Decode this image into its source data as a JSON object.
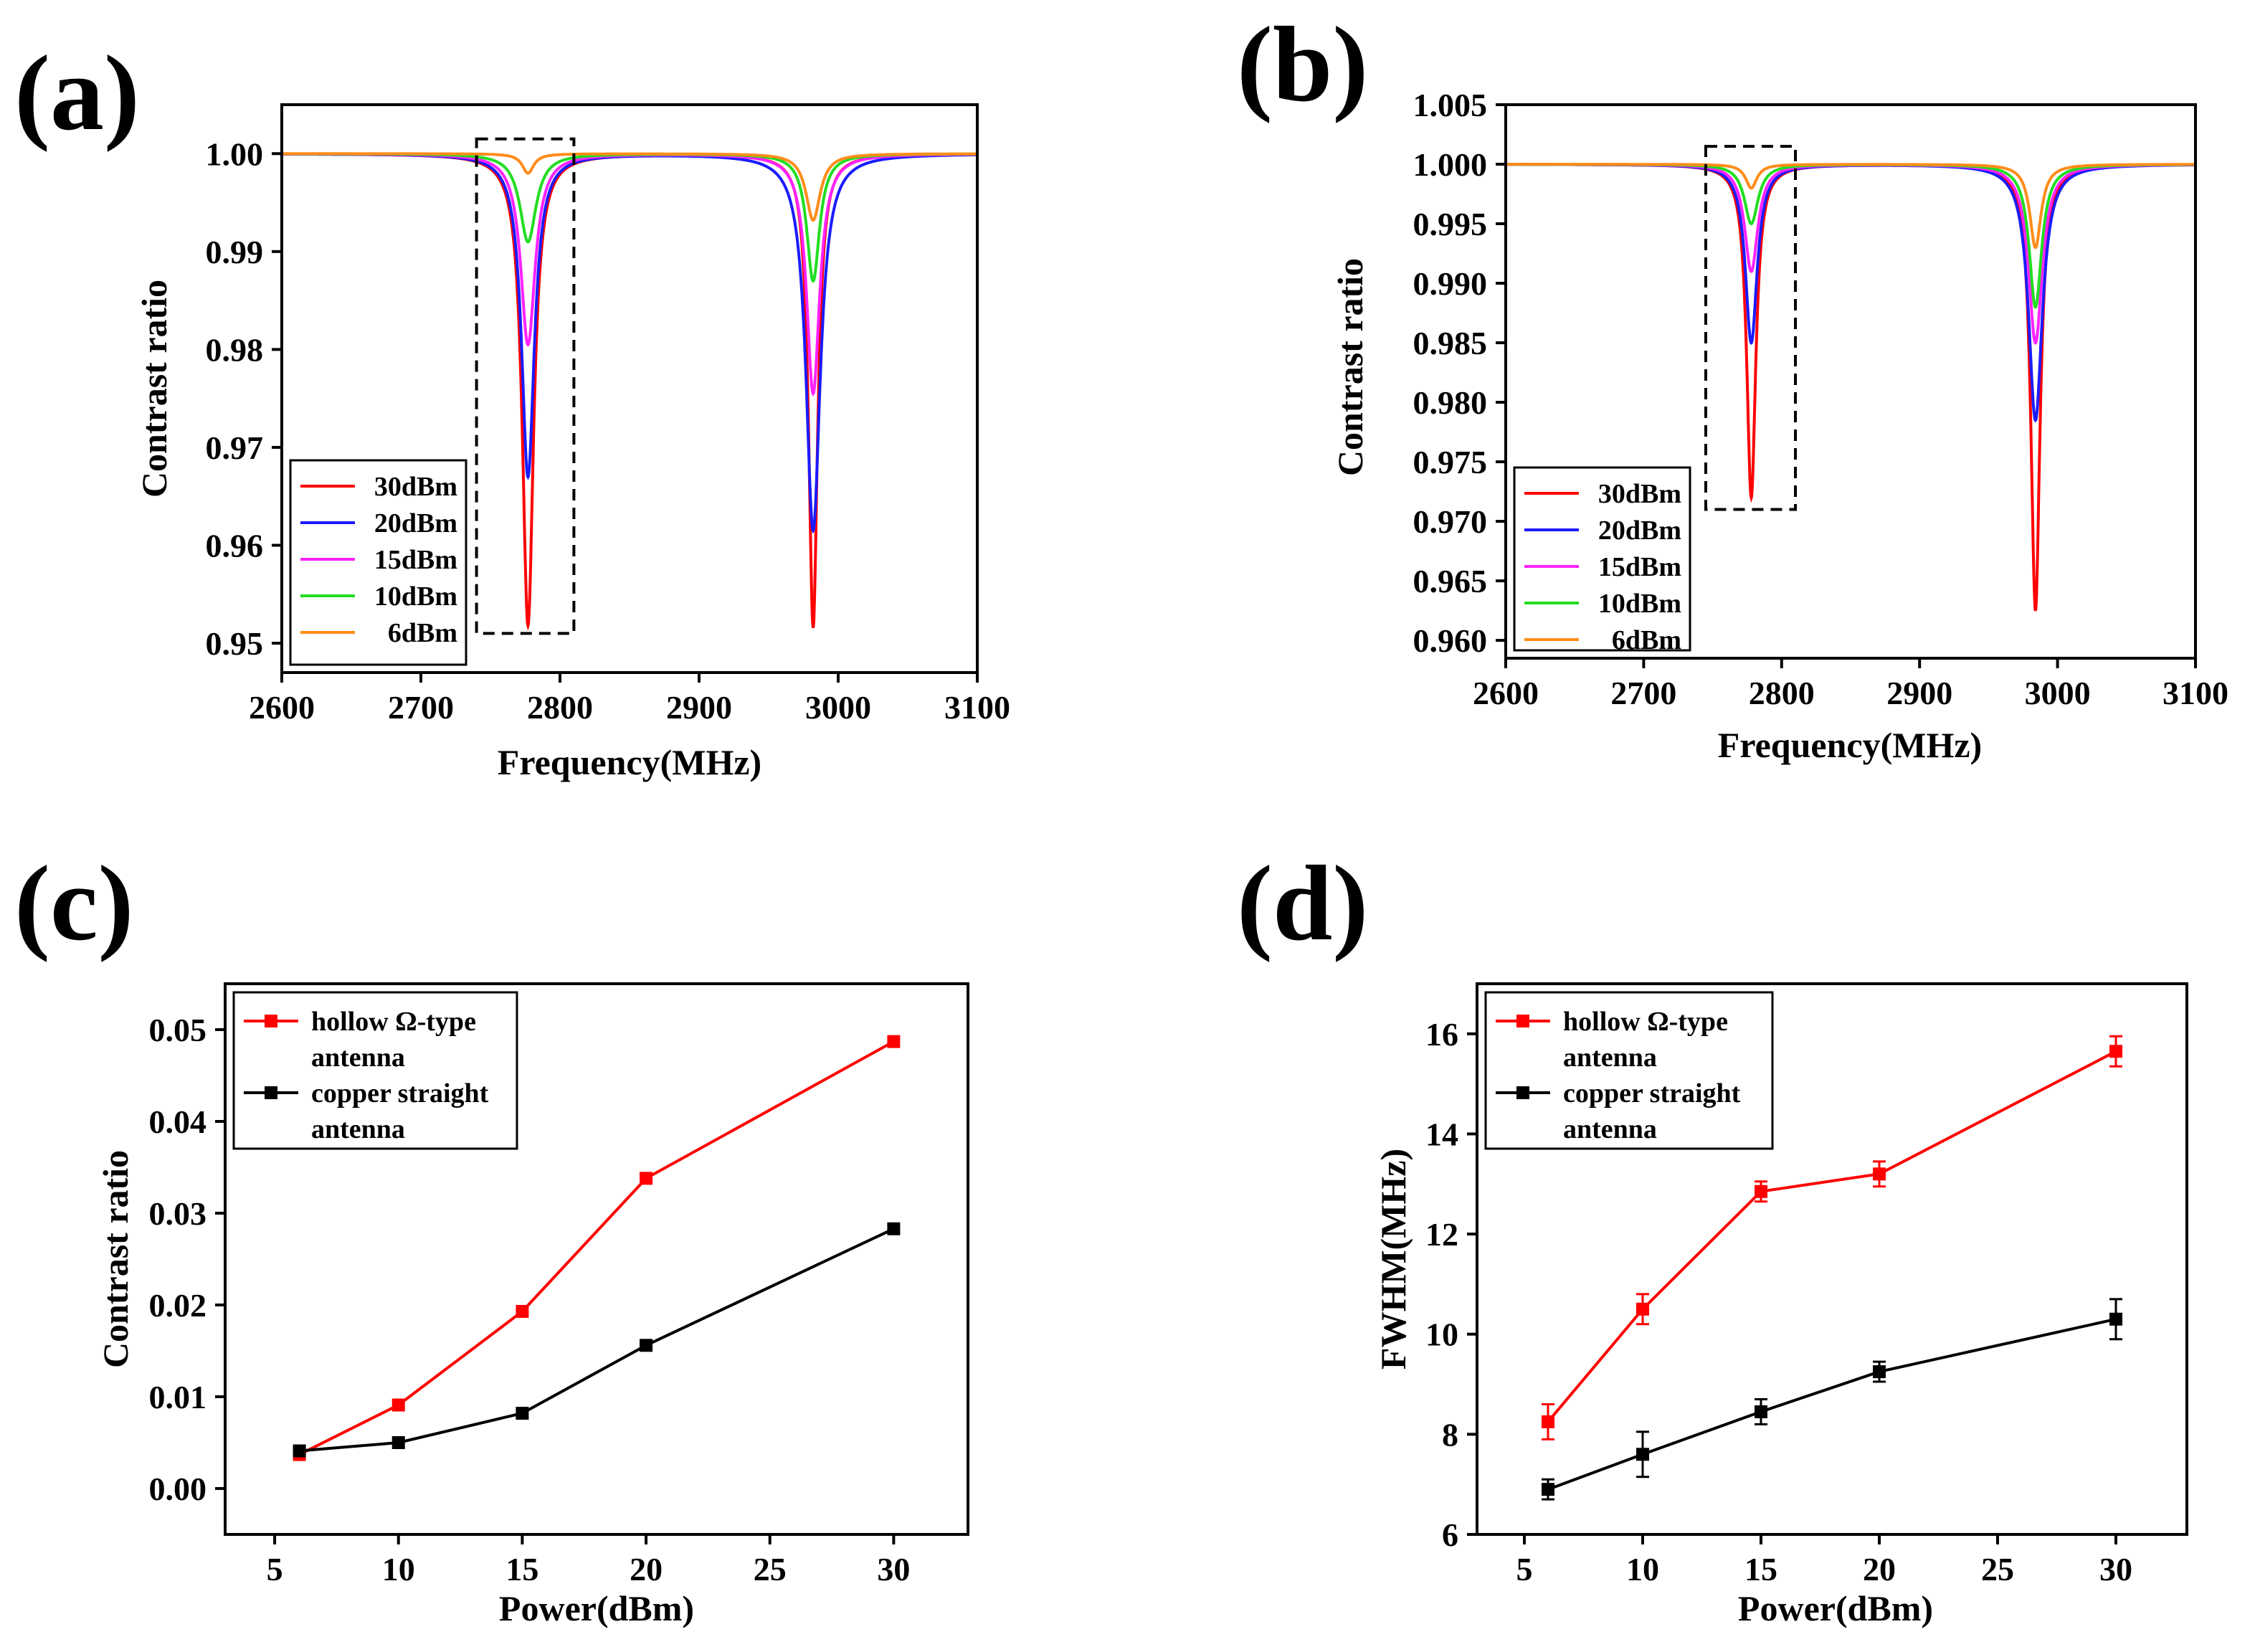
{
  "chart_data": [
    {
      "id": "a",
      "panel_label": "(a)",
      "type": "line",
      "xlabel": "Frequency(MHz)",
      "ylabel": "Contrast ratio",
      "xlim": [
        2600,
        3100
      ],
      "ylim": [
        0.947,
        1.005
      ],
      "xticks": [
        2600,
        2700,
        2800,
        2900,
        3000,
        3100
      ],
      "yticks": [
        0.95,
        0.96,
        0.97,
        0.98,
        0.99,
        1.0
      ],
      "ytick_labels": [
        "0.95",
        "0.96",
        "0.97",
        "0.98",
        "0.99",
        "1.00"
      ],
      "dip_centers": [
        2777,
        2982
      ],
      "highlight_box": {
        "x": [
          2740,
          2810
        ],
        "y": [
          0.951,
          1.0015
        ],
        "style": "dashed"
      },
      "series": [
        {
          "name": "30dBm",
          "color": "#ff0000",
          "dips": [
            0.0482,
            0.0484
          ],
          "hwhm": [
            4.9,
            3.9
          ]
        },
        {
          "name": "20dBm",
          "color": "#1b1bff",
          "dips": [
            0.033,
            0.0385
          ],
          "hwhm": [
            5.6,
            6.2
          ]
        },
        {
          "name": "15dBm",
          "color": "#ff22ff",
          "dips": [
            0.0195,
            0.0245
          ],
          "hwhm": [
            6.3,
            5.7
          ]
        },
        {
          "name": "10dBm",
          "color": "#22dd22",
          "dips": [
            0.009,
            0.013
          ],
          "hwhm": [
            7.1,
            5.6
          ]
        },
        {
          "name": "6dBm",
          "color": "#ff8c1a",
          "dips": [
            0.002,
            0.0068
          ],
          "hwhm": [
            5.0,
            6.2
          ]
        }
      ]
    },
    {
      "id": "b",
      "panel_label": "(b)",
      "type": "line",
      "xlabel": "Frequency(MHz)",
      "ylabel": "Contrast ratio",
      "xlim": [
        2600,
        3100
      ],
      "ylim": [
        0.9585,
        1.005
      ],
      "xticks": [
        2600,
        2700,
        2800,
        2900,
        3000,
        3100
      ],
      "yticks": [
        0.96,
        0.965,
        0.97,
        0.975,
        0.98,
        0.985,
        0.99,
        0.995,
        1.0,
        1.005
      ],
      "ytick_labels": [
        "0.960",
        "0.965",
        "0.970",
        "0.975",
        "0.980",
        "0.985",
        "0.990",
        "0.995",
        "1.000",
        "1.005"
      ],
      "dip_centers": [
        2778,
        2984
      ],
      "highlight_box": {
        "x": [
          2745,
          2810
        ],
        "y": [
          0.971,
          1.0015
        ],
        "style": "dashed"
      },
      "series": [
        {
          "name": "30dBm",
          "color": "#ff0000",
          "dips": [
            0.028,
            0.0375
          ],
          "hwhm": [
            4.0,
            4.0
          ]
        },
        {
          "name": "20dBm",
          "color": "#1b1bff",
          "dips": [
            0.015,
            0.0215
          ],
          "hwhm": [
            5.2,
            6.0
          ]
        },
        {
          "name": "15dBm",
          "color": "#ff22ff",
          "dips": [
            0.009,
            0.015
          ],
          "hwhm": [
            5.8,
            6.0
          ]
        },
        {
          "name": "10dBm",
          "color": "#22dd22",
          "dips": [
            0.005,
            0.012
          ],
          "hwhm": [
            6.0,
            5.5
          ]
        },
        {
          "name": "6dBm",
          "color": "#ff8c1a",
          "dips": [
            0.002,
            0.007
          ],
          "hwhm": [
            5.0,
            5.0
          ]
        }
      ]
    },
    {
      "id": "c",
      "panel_label": "(c)",
      "type": "line",
      "xlabel": "Power(dBm)",
      "ylabel": "Contrast ratio",
      "xlim": [
        3,
        33
      ],
      "ylim": [
        -0.005,
        0.055
      ],
      "xticks": [
        5,
        10,
        15,
        20,
        25,
        30
      ],
      "yticks": [
        0.0,
        0.01,
        0.02,
        0.03,
        0.04,
        0.05
      ],
      "ytick_labels": [
        "0.00",
        "0.01",
        "0.02",
        "0.03",
        "0.04",
        "0.05"
      ],
      "x": [
        6,
        10,
        15,
        20,
        30
      ],
      "series": [
        {
          "name": "hollow Ω-type antenna",
          "legend_lines": [
            "hollow Ω-type",
            "antenna"
          ],
          "color": "#ff0000",
          "values": [
            0.0037,
            0.0091,
            0.0193,
            0.0338,
            0.0487
          ]
        },
        {
          "name": "copper straight antenna",
          "legend_lines": [
            "copper straight",
            "antenna"
          ],
          "color": "#000000",
          "values": [
            0.0041,
            0.005,
            0.0082,
            0.0156,
            0.0283
          ]
        }
      ]
    },
    {
      "id": "d",
      "panel_label": "(d)",
      "type": "line",
      "xlabel": "Power(dBm)",
      "ylabel": "FWHM(MHz)",
      "xlim": [
        3,
        33
      ],
      "ylim": [
        6,
        17
      ],
      "xticks": [
        5,
        10,
        15,
        20,
        25,
        30
      ],
      "yticks": [
        6,
        8,
        10,
        12,
        14,
        16
      ],
      "ytick_labels": [
        "6",
        "8",
        "10",
        "12",
        "14",
        "16"
      ],
      "x": [
        6,
        10,
        15,
        20,
        30
      ],
      "series": [
        {
          "name": "hollow Ω-type antenna",
          "legend_lines": [
            "hollow Ω-type",
            "antenna"
          ],
          "color": "#ff0000",
          "values": [
            8.25,
            10.5,
            12.85,
            13.2,
            15.65
          ],
          "errors": [
            0.35,
            0.3,
            0.2,
            0.25,
            0.3
          ]
        },
        {
          "name": "copper straight antenna",
          "legend_lines": [
            "copper straight",
            "antenna"
          ],
          "color": "#000000",
          "values": [
            6.9,
            7.6,
            8.45,
            9.25,
            10.3
          ],
          "errors": [
            0.2,
            0.45,
            0.25,
            0.2,
            0.4
          ]
        }
      ]
    }
  ]
}
